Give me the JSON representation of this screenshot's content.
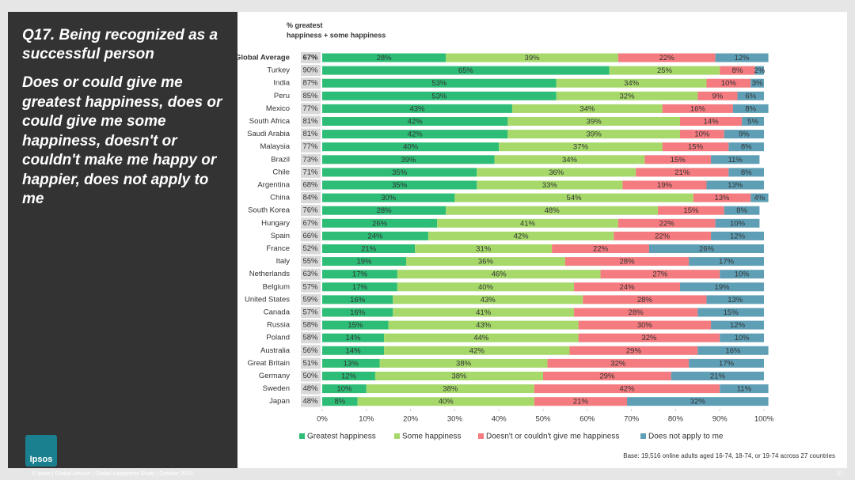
{
  "panel": {
    "title": "Q17. Being recognized as a successful person",
    "question": "Does or could give me greatest happiness, does or could give me some happiness, doesn't or couldn't make me happy or happier, does not apply to me"
  },
  "logo": "Ipsos",
  "footer": "© Ipsos | Global Advisor | Global Happiness Study | October 2020",
  "page_number": "37",
  "chart_data": {
    "type": "stacked_bar_horizontal",
    "categories": [
      "Global Average",
      "Turkey",
      "India",
      "Peru",
      "Mexico",
      "South Africa",
      "Saudi Arabia",
      "Malaysia",
      "Brazil",
      "Chile",
      "Argentina",
      "China",
      "South Korea",
      "Hungary",
      "Spain",
      "France",
      "Italy",
      "Netherlands",
      "Belgium",
      "United States",
      "Canada",
      "Russia",
      "Poland",
      "Australia",
      "Great Britain",
      "Germany",
      "Sweden",
      "Japan"
    ],
    "totals": {
      "name": "% greatest happiness + some happiness",
      "values": [
        67,
        90,
        87,
        85,
        77,
        81,
        81,
        77,
        73,
        71,
        68,
        84,
        76,
        67,
        66,
        52,
        55,
        63,
        57,
        59,
        57,
        58,
        58,
        56,
        51,
        50,
        48,
        48
      ],
      "value_labels": [
        "67%",
        "90%",
        "87%",
        "85%",
        "77%",
        "81%",
        "81%",
        "77%",
        "73%",
        "71%",
        "68%",
        "84%",
        "76%",
        "67%",
        "66%",
        "52%",
        "55%",
        "63%",
        "57%",
        "59%",
        "57%",
        "58%",
        "58%",
        "56%",
        "51%",
        "50%",
        "48%",
        "48%"
      ]
    },
    "series": [
      {
        "name": "Greatest happiness",
        "color": "#2dbd77",
        "values": [
          28,
          65,
          53,
          53,
          43,
          42,
          42,
          40,
          39,
          35,
          35,
          30,
          28,
          26,
          24,
          21,
          19,
          17,
          17,
          16,
          16,
          15,
          14,
          14,
          13,
          12,
          10,
          8
        ],
        "value_labels": [
          "28%",
          "65%",
          "53%",
          "53%",
          "43%",
          "42%",
          "42%",
          "40%",
          "39%",
          "35%",
          "35%",
          "30%",
          "28%",
          "26%",
          "24%",
          "21%",
          "19%",
          "17%",
          "17%",
          "16%",
          "16%",
          "15%",
          "14%",
          "14%",
          "13%",
          "12%",
          "10%",
          "8%"
        ]
      },
      {
        "name": "Some happiness",
        "color": "#a6d96a",
        "values": [
          39,
          25,
          34,
          32,
          34,
          39,
          39,
          37,
          34,
          36,
          33,
          54,
          48,
          41,
          42,
          31,
          36,
          46,
          40,
          43,
          41,
          43,
          44,
          42,
          38,
          38,
          38,
          40
        ],
        "value_labels": [
          "39%",
          "25%",
          "34%",
          "32%",
          "34%",
          "39%",
          "39%",
          "37%",
          "34%",
          "36%",
          "33%",
          "54%",
          "48%",
          "41%",
          "42%",
          "31%",
          "36%",
          "46%",
          "40%",
          "43%",
          "41%",
          "43%",
          "44%",
          "42%",
          "38%",
          "38%",
          "38%",
          "40%"
        ]
      },
      {
        "name": "Doesn't or couldn't give me happiness",
        "color": "#f47b7f",
        "values": [
          22,
          8,
          10,
          9,
          16,
          14,
          10,
          15,
          15,
          21,
          19,
          13,
          15,
          22,
          22,
          22,
          28,
          27,
          24,
          28,
          28,
          30,
          32,
          29,
          32,
          29,
          42,
          21
        ],
        "value_labels": [
          "22%",
          "8%",
          "10%",
          "9%",
          "16%",
          "14%",
          "10%",
          "15%",
          "15%",
          "21%",
          "19%",
          "13%",
          "15%",
          "22%",
          "22%",
          "22%",
          "28%",
          "27%",
          "24%",
          "28%",
          "28%",
          "30%",
          "32%",
          "29%",
          "32%",
          "29%",
          "42%",
          "21%"
        ]
      },
      {
        "name": "Does not apply to me",
        "color": "#5f9fb6",
        "values": [
          12,
          2,
          3,
          6,
          8,
          5,
          9,
          8,
          11,
          8,
          13,
          4,
          8,
          10,
          12,
          26,
          17,
          10,
          19,
          13,
          15,
          12,
          10,
          16,
          17,
          21,
          11,
          32
        ],
        "value_labels": [
          "12%",
          "2%",
          "3%",
          "6%",
          "8%",
          "5%",
          "9%",
          "8%",
          "11%",
          "8%",
          "13%",
          "4%",
          "8%",
          "10%",
          "12%",
          "26%",
          "17%",
          "10%",
          "19%",
          "13%",
          "15%",
          "12%",
          "10%",
          "16%",
          "17%",
          "21%",
          "11%",
          "32%"
        ]
      }
    ],
    "xlim": [
      0,
      100
    ],
    "xticks": [
      {
        "value": 0,
        "label": "0%"
      },
      {
        "value": 10,
        "label": "10%"
      },
      {
        "value": 20,
        "label": "20%"
      },
      {
        "value": 30,
        "label": "30%"
      },
      {
        "value": 40,
        "label": "40%"
      },
      {
        "value": 50,
        "label": "50%"
      },
      {
        "value": 60,
        "label": "60%"
      },
      {
        "value": 70,
        "label": "70%"
      },
      {
        "value": 80,
        "label": "80%"
      },
      {
        "value": 90,
        "label": "90%"
      },
      {
        "value": 100,
        "label": "100%"
      }
    ],
    "legend": "bottom",
    "note": "Base: 19,516 online adults aged 16-74, 18-74, or 19-74 across 27 countries"
  }
}
